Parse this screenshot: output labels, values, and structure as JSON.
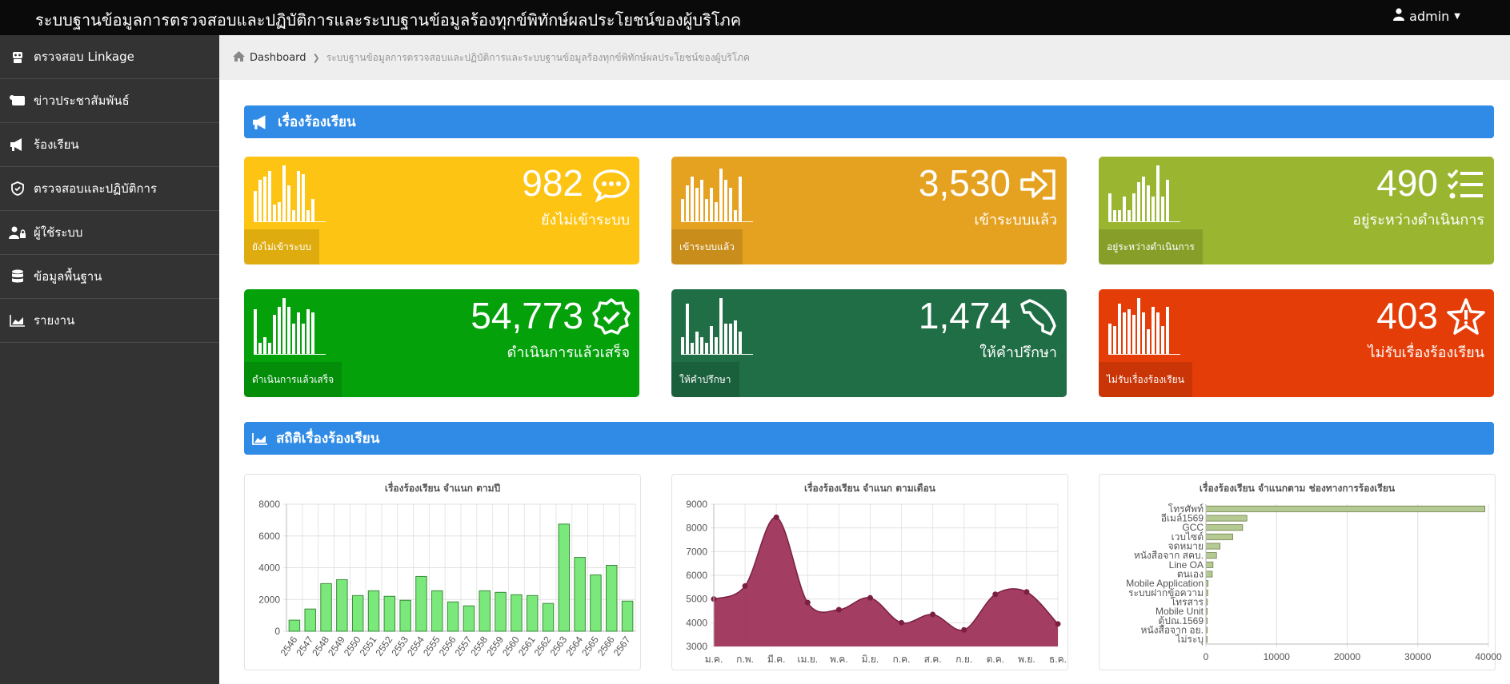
{
  "app": {
    "title": "ระบบฐานข้อมูลการตรวจสอบและปฏิบัติการและระบบฐานข้อมูลร้องทุกข์พิทักษ์ผลประโยชน์ของผู้บริโภค",
    "user": "admin"
  },
  "sidebar": {
    "items": [
      {
        "label": "ตรวจสอบ Linkage",
        "icon": "robot-icon"
      },
      {
        "label": "ข่าวประชาสัมพันธ์",
        "icon": "scroll-icon"
      },
      {
        "label": "ร้องเรียน",
        "icon": "megaphone-icon"
      },
      {
        "label": "ตรวจสอบและปฏิบัติการ",
        "icon": "shield-check-icon"
      },
      {
        "label": "ผู้ใช้ระบบ",
        "icon": "user-lock-icon"
      },
      {
        "label": "ข้อมูลพื้นฐาน",
        "icon": "database-icon"
      },
      {
        "label": "รายงาน",
        "icon": "area-chart-icon"
      }
    ]
  },
  "breadcrumb": {
    "home": "Dashboard",
    "current": "ระบบฐานข้อมูลการตรวจสอบและปฏิบัติการและระบบฐานข้อมูลร้องทุกข์พิทักษ์ผลประโยชน์ของผู้บริโภค"
  },
  "sections": {
    "complaints": "เรื่องร้องเรียน",
    "stats": "สถิติเรื่องร้องเรียน"
  },
  "cards": [
    {
      "value": "982",
      "label": "ยังไม่เข้าระบบ",
      "tag": "ยังไม่เข้าระบบ",
      "color": "#fec413",
      "icon": "comment-dots-icon",
      "bars": [
        55,
        75,
        80,
        90,
        30,
        35,
        100,
        65,
        20,
        90,
        85,
        20,
        40
      ]
    },
    {
      "value": "3,530",
      "label": "เข้าระบบแล้ว",
      "tag": "เข้าระบบแล้ว",
      "color": "#e5a120",
      "icon": "sign-in-icon",
      "bars": [
        40,
        65,
        80,
        60,
        75,
        40,
        60,
        35,
        95,
        75,
        60,
        20,
        80
      ]
    },
    {
      "value": "490",
      "label": "อยู่ระหว่างดำเนินการ",
      "tag": "อยู่ระหว่างดำเนินการ",
      "color": "#9ab52f",
      "icon": "tasks-icon",
      "bars": [
        50,
        20,
        20,
        45,
        20,
        50,
        70,
        80,
        65,
        45,
        100,
        45,
        75
      ]
    },
    {
      "value": "54,773",
      "label": "ดำเนินการแล้วเสร็จ",
      "tag": "ดำเนินการแล้วเสร็จ",
      "color": "#04a10b",
      "icon": "badge-check-icon",
      "bars": [
        80,
        20,
        30,
        20,
        70,
        85,
        100,
        85,
        55,
        75,
        55,
        80,
        75
      ]
    },
    {
      "value": "1,474",
      "label": "ให้คำปรึกษา",
      "tag": "ให้คำปรึกษา",
      "color": "#1f6e45",
      "icon": "phone-icon",
      "bars": [
        30,
        90,
        20,
        40,
        30,
        20,
        50,
        30,
        100,
        55,
        55,
        60,
        40
      ]
    },
    {
      "value": "403",
      "label": "ไม่รับเรื่องร้องเรียน",
      "tag": "ไม่รับเรื่องร้องเรียน",
      "color": "#e53d08",
      "icon": "star-exclaim-icon",
      "bars": [
        55,
        50,
        90,
        75,
        80,
        70,
        100,
        75,
        45,
        85,
        75,
        50,
        85
      ]
    }
  ],
  "chart_data": [
    {
      "type": "bar",
      "title": "เรื่องร้องเรียน จำแนก ตามปี",
      "categories": [
        "2546",
        "2547",
        "2548",
        "2549",
        "2550",
        "2551",
        "2552",
        "2553",
        "2554",
        "2555",
        "2556",
        "2557",
        "2558",
        "2559",
        "2560",
        "2561",
        "2562",
        "2563",
        "2564",
        "2565",
        "2566",
        "2567"
      ],
      "values": [
        700,
        1400,
        3000,
        3250,
        2250,
        2550,
        2200,
        1950,
        3450,
        2550,
        1850,
        1600,
        2550,
        2450,
        2300,
        2250,
        1750,
        6750,
        4650,
        3550,
        4150,
        1900
      ],
      "ylim": [
        0,
        8000
      ],
      "yticks": [
        0,
        2000,
        4000,
        6000,
        8000
      ],
      "color": "#7be87b",
      "grid": true
    },
    {
      "type": "area",
      "title": "เรื่องร้องเรียน จำแนก ตามเดือน",
      "categories": [
        "ม.ค.",
        "ก.พ.",
        "มี.ค.",
        "เม.ย.",
        "พ.ค.",
        "มิ.ย.",
        "ก.ค.",
        "ส.ค.",
        "ก.ย.",
        "ต.ค.",
        "พ.ย.",
        "ธ.ค."
      ],
      "values": [
        5000,
        5550,
        8450,
        4850,
        4550,
        5050,
        4000,
        4350,
        3700,
        5200,
        5300,
        3950
      ],
      "ylim": [
        3000,
        9000
      ],
      "yticks": [
        3000,
        4000,
        5000,
        6000,
        7000,
        8000,
        9000
      ],
      "color": "#9b2c55",
      "grid": true
    },
    {
      "type": "bar",
      "orientation": "horizontal",
      "title": "เรื่องร้องเรียน จำแนกตาม ช่องทางการร้องเรียน",
      "categories": [
        "โทรศัพท์",
        "อีเมล์1569",
        "GCC",
        "เวบไซต์",
        "จดหมาย",
        "หนังสือจาก สคบ.",
        "Line OA",
        "ตนเอง",
        "Mobile Application",
        "ระบบฝากข้อความ",
        "โทรสาร",
        "Mobile Unit",
        "ตู้ปณ.1569",
        "หนังสือจาก อย.",
        "ไม่ระบุ"
      ],
      "values": [
        39500,
        5800,
        5200,
        3800,
        2000,
        1500,
        1000,
        900,
        300,
        250,
        200,
        180,
        150,
        100,
        80
      ],
      "xlim": [
        0,
        40000
      ],
      "xticks": [
        0,
        10000,
        20000,
        30000,
        40000
      ],
      "color": "#b5c993",
      "grid": true
    }
  ]
}
